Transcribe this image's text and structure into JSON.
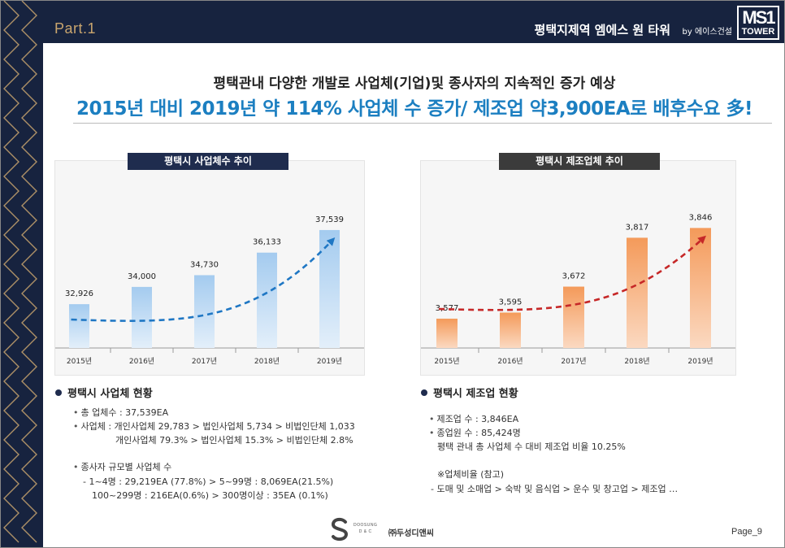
{
  "header": {
    "part_label": "Part.1",
    "project_name": "평택지제역 엠에스 원 타워",
    "project_by": "by 에이스건설",
    "logo_mark": "MS1",
    "logo_text": "TOWER"
  },
  "headline": {
    "line1": "평택관내 다양한 개발로 사업체(기업)및  종사자의 지속적인 증가 예상",
    "line2": "2015년 대비 2019년 약 114% 사업체 수 증가/ 제조업 약3,900EA로  배후수요 多!"
  },
  "colors": {
    "navy": "#17233f",
    "gold": "#c9a56e",
    "blue_accent": "#1c7fc1",
    "trend_blue": "#1f77c4",
    "trend_red": "#c62828",
    "bar_blue": "#a9cdee",
    "bar_orange": "#f4a46a"
  },
  "chart_data": [
    {
      "type": "bar",
      "title": "평택시 사업체수 추이",
      "categories": [
        "2015년",
        "2016년",
        "2017년",
        "2018년",
        "2019년"
      ],
      "values": [
        32926,
        34000,
        34730,
        36133,
        37539
      ],
      "value_labels": [
        "32,926",
        "34,000",
        "34,730",
        "36,133",
        "37,539"
      ],
      "trend_arrow": "dashed, blue",
      "grid": false
    },
    {
      "type": "bar",
      "title": "평택시 제조업체 추이",
      "categories": [
        "2015년",
        "2016년",
        "2017년",
        "2018년",
        "2019년"
      ],
      "values": [
        3577,
        3595,
        3672,
        3817,
        3846
      ],
      "value_labels": [
        "3,577",
        "3,595",
        "3,672",
        "3,817",
        "3,846"
      ],
      "trend_arrow": "dashed, red",
      "grid": false
    }
  ],
  "left_info": {
    "heading": "평택시 사업체 현황",
    "total": "총 업체수 : 37,539EA",
    "breakdown_count": "사업체 : 개인사업체 29,783  >  법인사업체 5,734  >  비법인단체 1,033",
    "breakdown_ratio": "개인사업체 79.3%  >  법인사업체 15.3%  >  비법인단체 2.8%",
    "employee_head": "종사자 규모별 사업체 수",
    "employee_line1": "- 1~4명 : 29,219EA (77.8%)   >  5~99명 : 8,069EA(21.5%)",
    "employee_line2": "100~299명 : 216EA(0.6%)  > 300명이상 : 35EA (0.1%)"
  },
  "right_info": {
    "heading": "평택시 제조업 현황",
    "count": "제조업 수 : 3,846EA",
    "workers": "종업원 수 : 85,424명",
    "ratio": "평택 관내 총 사업체 수 대비 제조업 비율  10.25%",
    "note_head": "※업체비율 (참고)",
    "note_body": "- 도매 및 소매업  >  숙박 및 음식업  >  운수 및 창고업  >  제조업  …"
  },
  "footer": {
    "brand_small_1": "DOOSUNG",
    "brand_small_2": "D & C",
    "company": "㈜두성디앤씨",
    "page": "Page_9"
  }
}
